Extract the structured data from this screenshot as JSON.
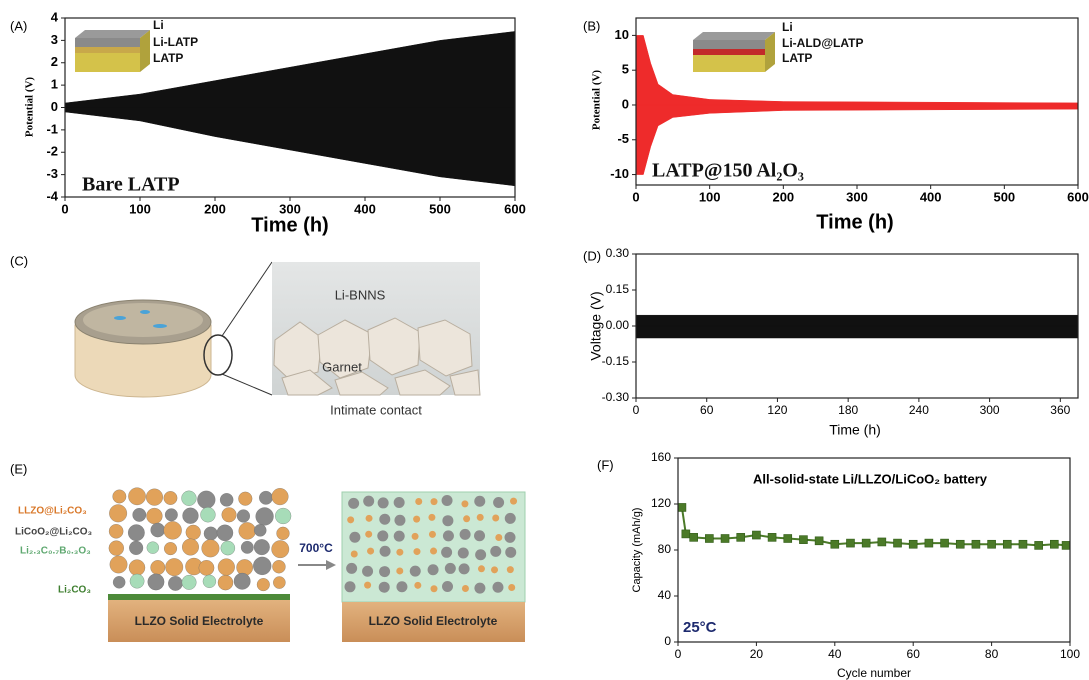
{
  "chart_data": [
    {
      "type": "band",
      "panel": "(A)",
      "xlabel": "Time (h)",
      "ylabel": "Potential (V)",
      "annotations": [
        "Bare LATP",
        "Li",
        "Li-LATP",
        "LATP"
      ],
      "x": [
        0,
        100,
        200,
        300,
        400,
        500,
        600
      ],
      "series": [
        {
          "color": "#111111",
          "values": [
            0.2,
            0.6,
            1.2,
            1.8,
            2.4,
            3.0,
            3.4
          ]
        },
        {
          "color": "#111111",
          "values": [
            -0.2,
            -0.6,
            -1.3,
            -1.9,
            -2.5,
            -3.1,
            -3.5
          ]
        }
      ],
      "xlim": [
        0,
        600
      ],
      "xticks": [
        0,
        100,
        200,
        300,
        400,
        500,
        600
      ],
      "ylim": [
        -4,
        4
      ],
      "yticks": [
        -4,
        -3,
        -2,
        -1,
        0,
        1,
        2,
        3,
        4
      ]
    },
    {
      "type": "band",
      "panel": "(B)",
      "xlabel": "Time (h)",
      "ylabel": "Potential (V)",
      "annotations": [
        "LATP@150 Al₂O₃",
        "Li",
        "Li-ALD@LATP",
        "LATP"
      ],
      "x": [
        0,
        10,
        20,
        30,
        50,
        100,
        200,
        600
      ],
      "series": [
        {
          "color": "#ee2b2b",
          "values": [
            10,
            10,
            6,
            3,
            1.5,
            0.8,
            0.5,
            0.3
          ]
        },
        {
          "color": "#ee2b2b",
          "values": [
            -10,
            -10,
            -6,
            -3,
            -1.8,
            -1.2,
            -0.8,
            -0.6
          ]
        }
      ],
      "xlim": [
        0,
        600
      ],
      "xticks": [
        0,
        100,
        200,
        300,
        400,
        500,
        600
      ],
      "ylim": [
        -11.5,
        12.5
      ],
      "yticks": [
        -10,
        -5,
        0,
        5,
        10
      ]
    },
    {
      "type": "band",
      "panel": "(D)",
      "xlabel": "Time (h)",
      "ylabel": "Voltage (V)",
      "x": [
        0,
        375
      ],
      "series": [
        {
          "color": "#111111",
          "values": [
            0.045,
            0.045
          ]
        },
        {
          "color": "#111111",
          "values": [
            -0.05,
            -0.05
          ]
        }
      ],
      "xlim": [
        0,
        375
      ],
      "xticks": [
        0,
        60,
        120,
        180,
        240,
        300,
        360
      ],
      "ylim": [
        -0.3,
        0.3
      ],
      "yticks": [
        {
          "value": -0.3,
          "label": "-0.30"
        },
        {
          "value": -0.15,
          "label": "-0.15"
        },
        {
          "value": 0,
          "label": "0.00"
        },
        {
          "value": 0.15,
          "label": "0.15"
        },
        {
          "value": 0.3,
          "label": "0.30"
        }
      ]
    },
    {
      "type": "line",
      "panel": "(F)",
      "title": "All-solid-state Li/LLZO/LiCoO₂ battery",
      "xlabel": "Cycle number",
      "ylabel": "Capacity (mAh/g)",
      "annotations": [
        "25°C"
      ],
      "x": [
        1,
        2,
        4,
        8,
        12,
        16,
        20,
        24,
        28,
        32,
        36,
        40,
        44,
        48,
        52,
        56,
        60,
        64,
        68,
        72,
        76,
        80,
        84,
        88,
        92,
        96,
        99
      ],
      "series": [
        {
          "color": "#4b7a28",
          "values": [
            117,
            94,
            91,
            90,
            90,
            91,
            93,
            91,
            90,
            89,
            88,
            85,
            86,
            86,
            87,
            86,
            85,
            86,
            86,
            85,
            85,
            85,
            85,
            85,
            84,
            85,
            84
          ]
        }
      ],
      "xlim": [
        0,
        100
      ],
      "xticks": [
        0,
        20,
        40,
        60,
        80,
        100
      ],
      "ylim": [
        0,
        160
      ],
      "yticks": [
        0,
        40,
        80,
        120,
        160
      ]
    }
  ],
  "diagrams": [
    {
      "panel": "(C)",
      "labels": [
        "Li-BNNS",
        "Garnet",
        "Intimate contact"
      ]
    },
    {
      "panel": "(E)",
      "labels": [
        "LLZO@Li₂CO₃",
        "LiCoO₂@Li₂CO₃",
        "Li₂.₃C₀.₇B₀.₃O₃",
        "Li₂CO₃",
        "700°C",
        "LLZO Solid Electrolyte",
        "LLZO Solid Electrolyte"
      ]
    }
  ]
}
